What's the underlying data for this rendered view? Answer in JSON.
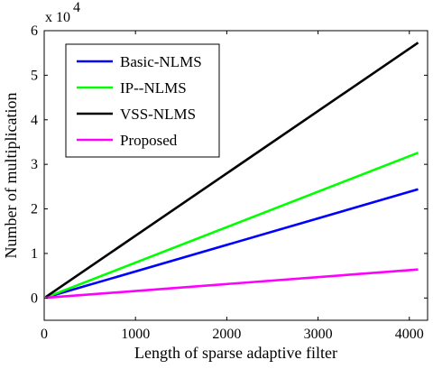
{
  "chart_data": {
    "type": "line",
    "xlabel": "Length of sparse adaptive filter",
    "ylabel": "Number of multiplication",
    "y_multiplier_label": "x 10",
    "y_multiplier_exp": "4",
    "xlim": [
      0,
      4200
    ],
    "ylim": [
      -0.5,
      6
    ],
    "xticks": [
      0,
      1000,
      2000,
      3000,
      4000
    ],
    "yticks": [
      0,
      1,
      2,
      3,
      4,
      5,
      6
    ],
    "xtick_labels": [
      "0",
      "1000",
      "2000",
      "3000",
      "4000"
    ],
    "ytick_labels": [
      "0",
      "1",
      "2",
      "3",
      "4",
      "5",
      "6"
    ],
    "grid": false,
    "legend_position": "top-left",
    "series": [
      {
        "name": "Basic-NLMS",
        "color": "#0000ff",
        "x": [
          16,
          4096
        ],
        "y": [
          0.01,
          2.44
        ]
      },
      {
        "name": "IP--NLMS",
        "color": "#00ff00",
        "x": [
          16,
          4096
        ],
        "y": [
          0.01,
          3.26
        ]
      },
      {
        "name": "VSS-NLMS",
        "color": "#000000",
        "x": [
          16,
          4096
        ],
        "y": [
          0.02,
          5.73
        ]
      },
      {
        "name": "Proposed",
        "color": "#ff00ff",
        "x": [
          16,
          4096
        ],
        "y": [
          0.005,
          0.64
        ]
      }
    ]
  }
}
